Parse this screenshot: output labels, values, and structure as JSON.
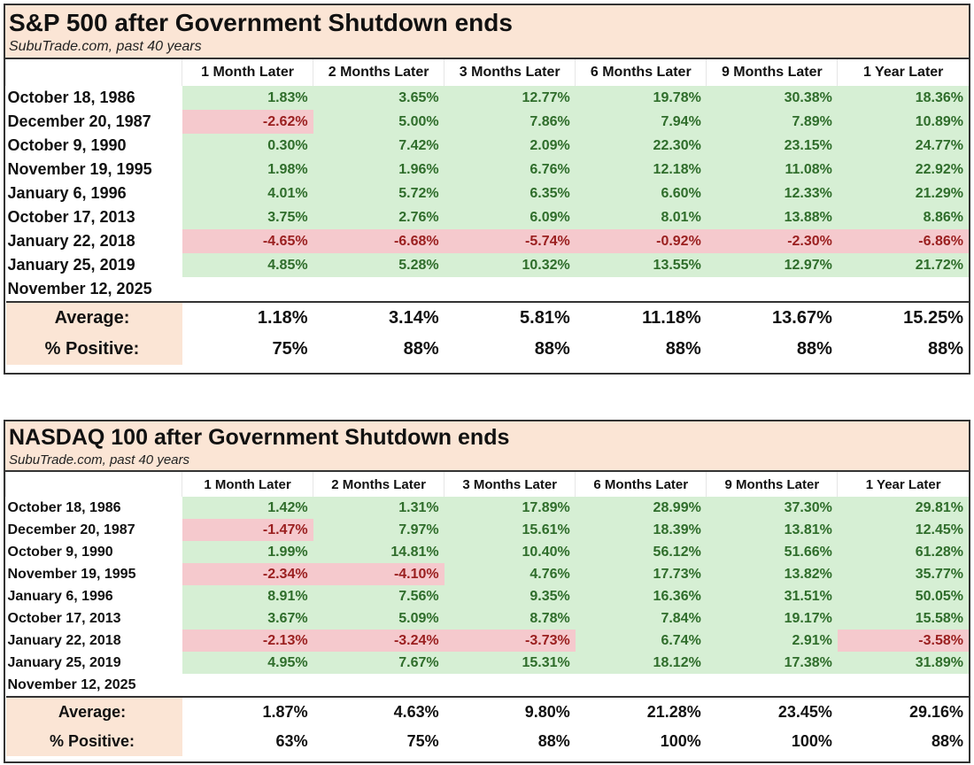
{
  "colors": {
    "positive_bg": "#d6efd4",
    "positive_text": "#2f6d2b",
    "negative_bg": "#f5c9cd",
    "negative_text": "#9a1f1f",
    "header_bg": "#fbe5d5"
  },
  "chart_data": [
    {
      "type": "table",
      "title": "S&P 500 after Government Shutdown ends",
      "subtitle": "SubuTrade.com, past 40 years",
      "columns": [
        "1 Month Later",
        "2 Months Later",
        "3 Months Later",
        "6 Months Later",
        "9 Months Later",
        "1 Year Later"
      ],
      "rows": [
        {
          "date": "October 18, 1986",
          "values": [
            "1.83%",
            "3.65%",
            "12.77%",
            "19.78%",
            "30.38%",
            "18.36%"
          ]
        },
        {
          "date": "December 20, 1987",
          "values": [
            "-2.62%",
            "5.00%",
            "7.86%",
            "7.94%",
            "7.89%",
            "10.89%"
          ]
        },
        {
          "date": "October 9, 1990",
          "values": [
            "0.30%",
            "7.42%",
            "2.09%",
            "22.30%",
            "23.15%",
            "24.77%"
          ]
        },
        {
          "date": "November 19, 1995",
          "values": [
            "1.98%",
            "1.96%",
            "6.76%",
            "12.18%",
            "11.08%",
            "22.92%"
          ]
        },
        {
          "date": "January 6, 1996",
          "values": [
            "4.01%",
            "5.72%",
            "6.35%",
            "6.60%",
            "12.33%",
            "21.29%"
          ]
        },
        {
          "date": "October 17, 2013",
          "values": [
            "3.75%",
            "2.76%",
            "6.09%",
            "8.01%",
            "13.88%",
            "8.86%"
          ]
        },
        {
          "date": "January 22, 2018",
          "values": [
            "-4.65%",
            "-6.68%",
            "-5.74%",
            "-0.92%",
            "-2.30%",
            "-6.86%"
          ]
        },
        {
          "date": "January 25, 2019",
          "values": [
            "4.85%",
            "5.28%",
            "10.32%",
            "13.55%",
            "12.97%",
            "21.72%"
          ]
        },
        {
          "date": "November 12, 2025",
          "values": [
            "",
            "",
            "",
            "",
            "",
            ""
          ]
        }
      ],
      "summary": [
        {
          "label": "Average:",
          "values": [
            "1.18%",
            "3.14%",
            "5.81%",
            "11.18%",
            "13.67%",
            "15.25%"
          ]
        },
        {
          "label": "% Positive:",
          "values": [
            "75%",
            "88%",
            "88%",
            "88%",
            "88%",
            "88%"
          ]
        }
      ]
    },
    {
      "type": "table",
      "title": "NASDAQ 100 after Government Shutdown ends",
      "subtitle": "SubuTrade.com, past 40 years",
      "columns": [
        "1 Month Later",
        "2 Months Later",
        "3 Months Later",
        "6 Months Later",
        "9 Months Later",
        "1 Year Later"
      ],
      "rows": [
        {
          "date": "October 18, 1986",
          "values": [
            "1.42%",
            "1.31%",
            "17.89%",
            "28.99%",
            "37.30%",
            "29.81%"
          ]
        },
        {
          "date": "December 20, 1987",
          "values": [
            "-1.47%",
            "7.97%",
            "15.61%",
            "18.39%",
            "13.81%",
            "12.45%"
          ]
        },
        {
          "date": "October 9, 1990",
          "values": [
            "1.99%",
            "14.81%",
            "10.40%",
            "56.12%",
            "51.66%",
            "61.28%"
          ]
        },
        {
          "date": "November 19, 1995",
          "values": [
            "-2.34%",
            "-4.10%",
            "4.76%",
            "17.73%",
            "13.82%",
            "35.77%"
          ]
        },
        {
          "date": "January 6, 1996",
          "values": [
            "8.91%",
            "7.56%",
            "9.35%",
            "16.36%",
            "31.51%",
            "50.05%"
          ]
        },
        {
          "date": "October 17, 2013",
          "values": [
            "3.67%",
            "5.09%",
            "8.78%",
            "7.84%",
            "19.17%",
            "15.58%"
          ]
        },
        {
          "date": "January 22, 2018",
          "values": [
            "-2.13%",
            "-3.24%",
            "-3.73%",
            "6.74%",
            "2.91%",
            "-3.58%"
          ]
        },
        {
          "date": "January 25, 2019",
          "values": [
            "4.95%",
            "7.67%",
            "15.31%",
            "18.12%",
            "17.38%",
            "31.89%"
          ]
        },
        {
          "date": "November 12, 2025",
          "values": [
            "",
            "",
            "",
            "",
            "",
            ""
          ]
        }
      ],
      "summary": [
        {
          "label": "Average:",
          "values": [
            "1.87%",
            "4.63%",
            "9.80%",
            "21.28%",
            "23.45%",
            "29.16%"
          ]
        },
        {
          "label": "% Positive:",
          "values": [
            "63%",
            "75%",
            "88%",
            "100%",
            "100%",
            "88%"
          ]
        }
      ]
    }
  ]
}
